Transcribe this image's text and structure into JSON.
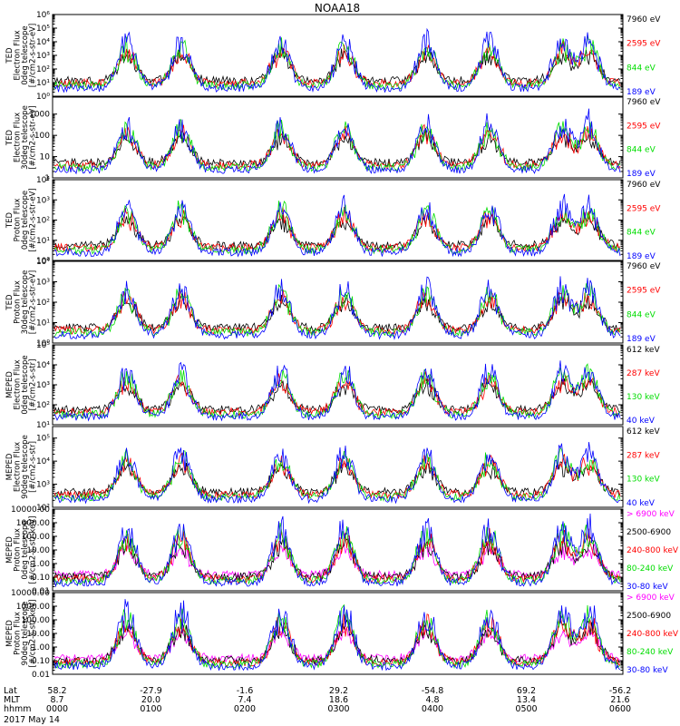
{
  "title": "NOAA18",
  "date_label": "2017 May 14",
  "x_rows": [
    {
      "label": "Lat",
      "values": [
        "58.2",
        "-27.9",
        "-1.6",
        "29.2",
        "-54.8",
        "69.2",
        "-56.2"
      ]
    },
    {
      "label": "MLT",
      "values": [
        "8.7",
        "20.0",
        "7.4",
        "18.6",
        "4.8",
        "13.4",
        "21.6"
      ]
    },
    {
      "label": "hhmm",
      "values": [
        "0000",
        "0100",
        "0200",
        "0300",
        "0400",
        "0500",
        "0600"
      ]
    }
  ],
  "colors": {
    "black": "#000000",
    "red": "#ff0000",
    "green": "#00dd00",
    "blue": "#0000ff",
    "magenta": "#ff00ff"
  },
  "chart_data": [
    {
      "type": "line",
      "ylabel": [
        "TED",
        "Electron Flux",
        "0deg telescope",
        "[#/cm2-s-str-eV]"
      ],
      "yticks": [
        "10^0",
        "10^1",
        "10^2",
        "10^3",
        "10^4",
        "10^5",
        "10^6"
      ],
      "ylim": [
        0,
        6
      ],
      "series": [
        {
          "name": "7960 eV",
          "color": "#000000",
          "values": []
        },
        {
          "name": "2595 eV",
          "color": "#ff0000",
          "values": []
        },
        {
          "name": "844 eV",
          "color": "#00dd00",
          "values": []
        },
        {
          "name": "189 eV",
          "color": "#0000ff",
          "values": []
        }
      ]
    },
    {
      "type": "line",
      "ylabel": [
        "TED",
        "Electron Flux",
        "30deg telescope",
        "[#/cm2-s-str-eV]"
      ],
      "yticks": [
        "1",
        "10",
        "100",
        "1000"
      ],
      "ylim": [
        0,
        3.8
      ],
      "series": [
        {
          "name": "7960 eV",
          "color": "#000000",
          "values": []
        },
        {
          "name": "2595 eV",
          "color": "#ff0000",
          "values": []
        },
        {
          "name": "844 eV",
          "color": "#00dd00",
          "values": []
        },
        {
          "name": "189 eV",
          "color": "#0000ff",
          "values": []
        }
      ]
    },
    {
      "type": "line",
      "ylabel": [
        "TED",
        "Proton Flux",
        "0deg telescope",
        "[#/cm2-s-str-eV]"
      ],
      "yticks": [
        "10^0",
        "10^1",
        "10^2",
        "10^3",
        "10^4"
      ],
      "ylim": [
        0,
        4
      ],
      "series": [
        {
          "name": "7960 eV",
          "color": "#000000",
          "values": []
        },
        {
          "name": "2595 eV",
          "color": "#ff0000",
          "values": []
        },
        {
          "name": "844 eV",
          "color": "#00dd00",
          "values": []
        },
        {
          "name": "189 eV",
          "color": "#0000ff",
          "values": []
        }
      ]
    },
    {
      "type": "line",
      "ylabel": [
        "TED",
        "Proton Flux",
        "30deg telescope",
        "[#/cm2-s-str-eV]"
      ],
      "yticks": [
        "10^0",
        "10^1",
        "10^2",
        "10^3",
        "10^4"
      ],
      "ylim": [
        0,
        4
      ],
      "series": [
        {
          "name": "7960 eV",
          "color": "#000000",
          "values": []
        },
        {
          "name": "2595 eV",
          "color": "#ff0000",
          "values": []
        },
        {
          "name": "844 eV",
          "color": "#00dd00",
          "values": []
        },
        {
          "name": "189 eV",
          "color": "#0000ff",
          "values": []
        }
      ]
    },
    {
      "type": "line",
      "ylabel": [
        "MEPED",
        "Electron Flux",
        "0deg telescope",
        "[#/cm2-s-str]"
      ],
      "yticks": [
        "10^1",
        "10^2",
        "10^3",
        "10^4",
        "10^5"
      ],
      "ylim": [
        1,
        5
      ],
      "series": [
        {
          "name": "612 keV",
          "color": "#000000",
          "values": []
        },
        {
          "name": "287 keV",
          "color": "#ff0000",
          "values": []
        },
        {
          "name": "130 keV",
          "color": "#00dd00",
          "values": []
        },
        {
          "name": "40 keV",
          "color": "#0000ff",
          "values": []
        }
      ]
    },
    {
      "type": "line",
      "ylabel": [
        "MEPED",
        "Electron Flux",
        "90deg telescope",
        "[#/cm2-s-str]"
      ],
      "yticks": [
        "10^2",
        "10^3",
        "10^4",
        "10^5"
      ],
      "ylim": [
        2,
        5.5
      ],
      "series": [
        {
          "name": "612 keV",
          "color": "#000000",
          "values": []
        },
        {
          "name": "287 keV",
          "color": "#ff0000",
          "values": []
        },
        {
          "name": "130 keV",
          "color": "#00dd00",
          "values": []
        },
        {
          "name": "40 keV",
          "color": "#0000ff",
          "values": []
        }
      ]
    },
    {
      "type": "line",
      "ylabel": [
        "MEPED",
        "Proton Flux",
        "0deg telescope",
        "[#/cm2-s-str-keV]"
      ],
      "yticks": [
        "0.01",
        "0.10",
        "1.00",
        "10.00",
        "100.00",
        "1000.00",
        "10000.00"
      ],
      "ylim": [
        -2,
        4
      ],
      "series": [
        {
          "name": "> 6900 keV",
          "color": "#ff00ff",
          "values": []
        },
        {
          "name": "2500-6900",
          "color": "#000000",
          "values": []
        },
        {
          "name": "240-800 keV",
          "color": "#ff0000",
          "values": []
        },
        {
          "name": "80-240 keV",
          "color": "#00dd00",
          "values": []
        },
        {
          "name": "30-80 keV",
          "color": "#0000ff",
          "values": []
        }
      ]
    },
    {
      "type": "line",
      "ylabel": [
        "MEPED",
        "Proton Flux",
        "90deg telescope",
        "[#/cm2-s-str-keV]"
      ],
      "yticks": [
        "0.01",
        "0.10",
        "1.00",
        "10.00",
        "100.00",
        "1000.00",
        "10000.00"
      ],
      "ylim": [
        -2,
        4
      ],
      "series": [
        {
          "name": "> 6900 keV",
          "color": "#ff00ff",
          "values": []
        },
        {
          "name": "2500-6900",
          "color": "#000000",
          "values": []
        },
        {
          "name": "240-800 keV",
          "color": "#ff0000",
          "values": []
        },
        {
          "name": "80-240 keV",
          "color": "#00dd00",
          "values": []
        },
        {
          "name": "30-80 keV",
          "color": "#0000ff",
          "values": []
        }
      ]
    }
  ]
}
